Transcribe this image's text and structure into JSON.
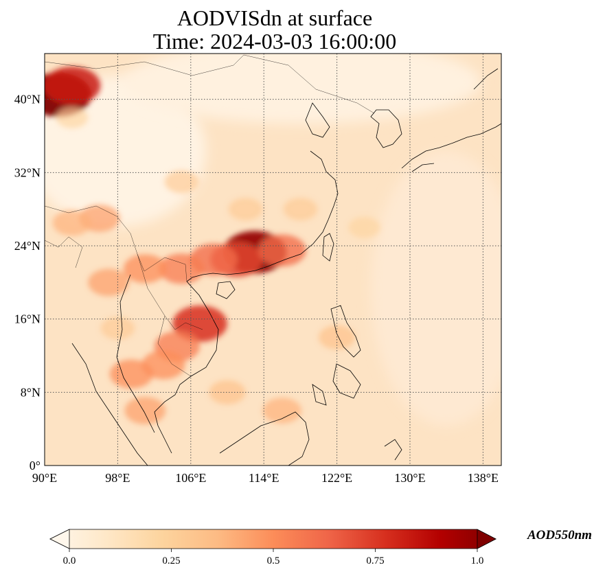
{
  "title_line1": "AODVISdn at surface",
  "title_line2": "Time: 2024-03-03 16:00:00",
  "map": {
    "lon_range": [
      90,
      140
    ],
    "lat_range": [
      0,
      45
    ],
    "lon_ticks": [
      {
        "value": 90,
        "label": "90°E"
      },
      {
        "value": 98,
        "label": "98°E"
      },
      {
        "value": 106,
        "label": "106°E"
      },
      {
        "value": 114,
        "label": "114°E"
      },
      {
        "value": 122,
        "label": "122°E"
      },
      {
        "value": 130,
        "label": "130°E"
      },
      {
        "value": 138,
        "label": "138°E"
      }
    ],
    "lat_ticks": [
      {
        "value": 0,
        "label": "0°"
      },
      {
        "value": 8,
        "label": "8°N"
      },
      {
        "value": 16,
        "label": "16°N"
      },
      {
        "value": 24,
        "label": "24°N"
      },
      {
        "value": 32,
        "label": "32°N"
      },
      {
        "value": 40,
        "label": "40°N"
      }
    ],
    "gridlines": true,
    "colormap": "OrRd",
    "field_hotspots": [
      {
        "lon": 91.5,
        "lat": 40.5,
        "value": 1.0
      },
      {
        "lon": 93,
        "lat": 41.5,
        "value": 0.8
      },
      {
        "lon": 113,
        "lat": 23.3,
        "value": 0.95
      },
      {
        "lon": 111,
        "lat": 22.5,
        "value": 0.7
      },
      {
        "lon": 116,
        "lat": 23.5,
        "value": 0.6
      },
      {
        "lon": 108.5,
        "lat": 22.5,
        "value": 0.6
      },
      {
        "lon": 105,
        "lat": 21.5,
        "value": 0.55
      },
      {
        "lon": 101,
        "lat": 21.5,
        "value": 0.5
      },
      {
        "lon": 107,
        "lat": 15.5,
        "value": 0.75
      },
      {
        "lon": 104.5,
        "lat": 13,
        "value": 0.55
      },
      {
        "lon": 103,
        "lat": 11,
        "value": 0.5
      },
      {
        "lon": 99.5,
        "lat": 10,
        "value": 0.5
      },
      {
        "lon": 101,
        "lat": 6,
        "value": 0.45
      },
      {
        "lon": 96,
        "lat": 27,
        "value": 0.45
      },
      {
        "lon": 93,
        "lat": 26.5,
        "value": 0.4
      },
      {
        "lon": 97,
        "lat": 20,
        "value": 0.45
      },
      {
        "lon": 112,
        "lat": 28,
        "value": 0.3
      },
      {
        "lon": 105,
        "lat": 31,
        "value": 0.3
      },
      {
        "lon": 118,
        "lat": 28,
        "value": 0.3
      },
      {
        "lon": 110,
        "lat": 8,
        "value": 0.35
      },
      {
        "lon": 116,
        "lat": 6,
        "value": 0.4
      },
      {
        "lon": 122,
        "lat": 14,
        "value": 0.35
      },
      {
        "lon": 125,
        "lat": 26,
        "value": 0.25
      },
      {
        "lon": 98,
        "lat": 15,
        "value": 0.3
      },
      {
        "lon": 93,
        "lat": 38,
        "value": 0.25
      }
    ]
  },
  "colorbar": {
    "min": 0.0,
    "max": 1.0,
    "ticks": [
      {
        "value": 0.0,
        "label": "0.0"
      },
      {
        "value": 0.25,
        "label": "0.25"
      },
      {
        "value": 0.5,
        "label": "0.5"
      },
      {
        "value": 0.75,
        "label": "0.75"
      },
      {
        "value": 1.0,
        "label": "1.0"
      }
    ],
    "extend": "both",
    "label": "AOD550nm",
    "colors": [
      "#fff7ec",
      "#fee8c8",
      "#fdd49e",
      "#fdbb84",
      "#fc8d59",
      "#ef6548",
      "#d7301f",
      "#b30000",
      "#7f0000"
    ]
  }
}
